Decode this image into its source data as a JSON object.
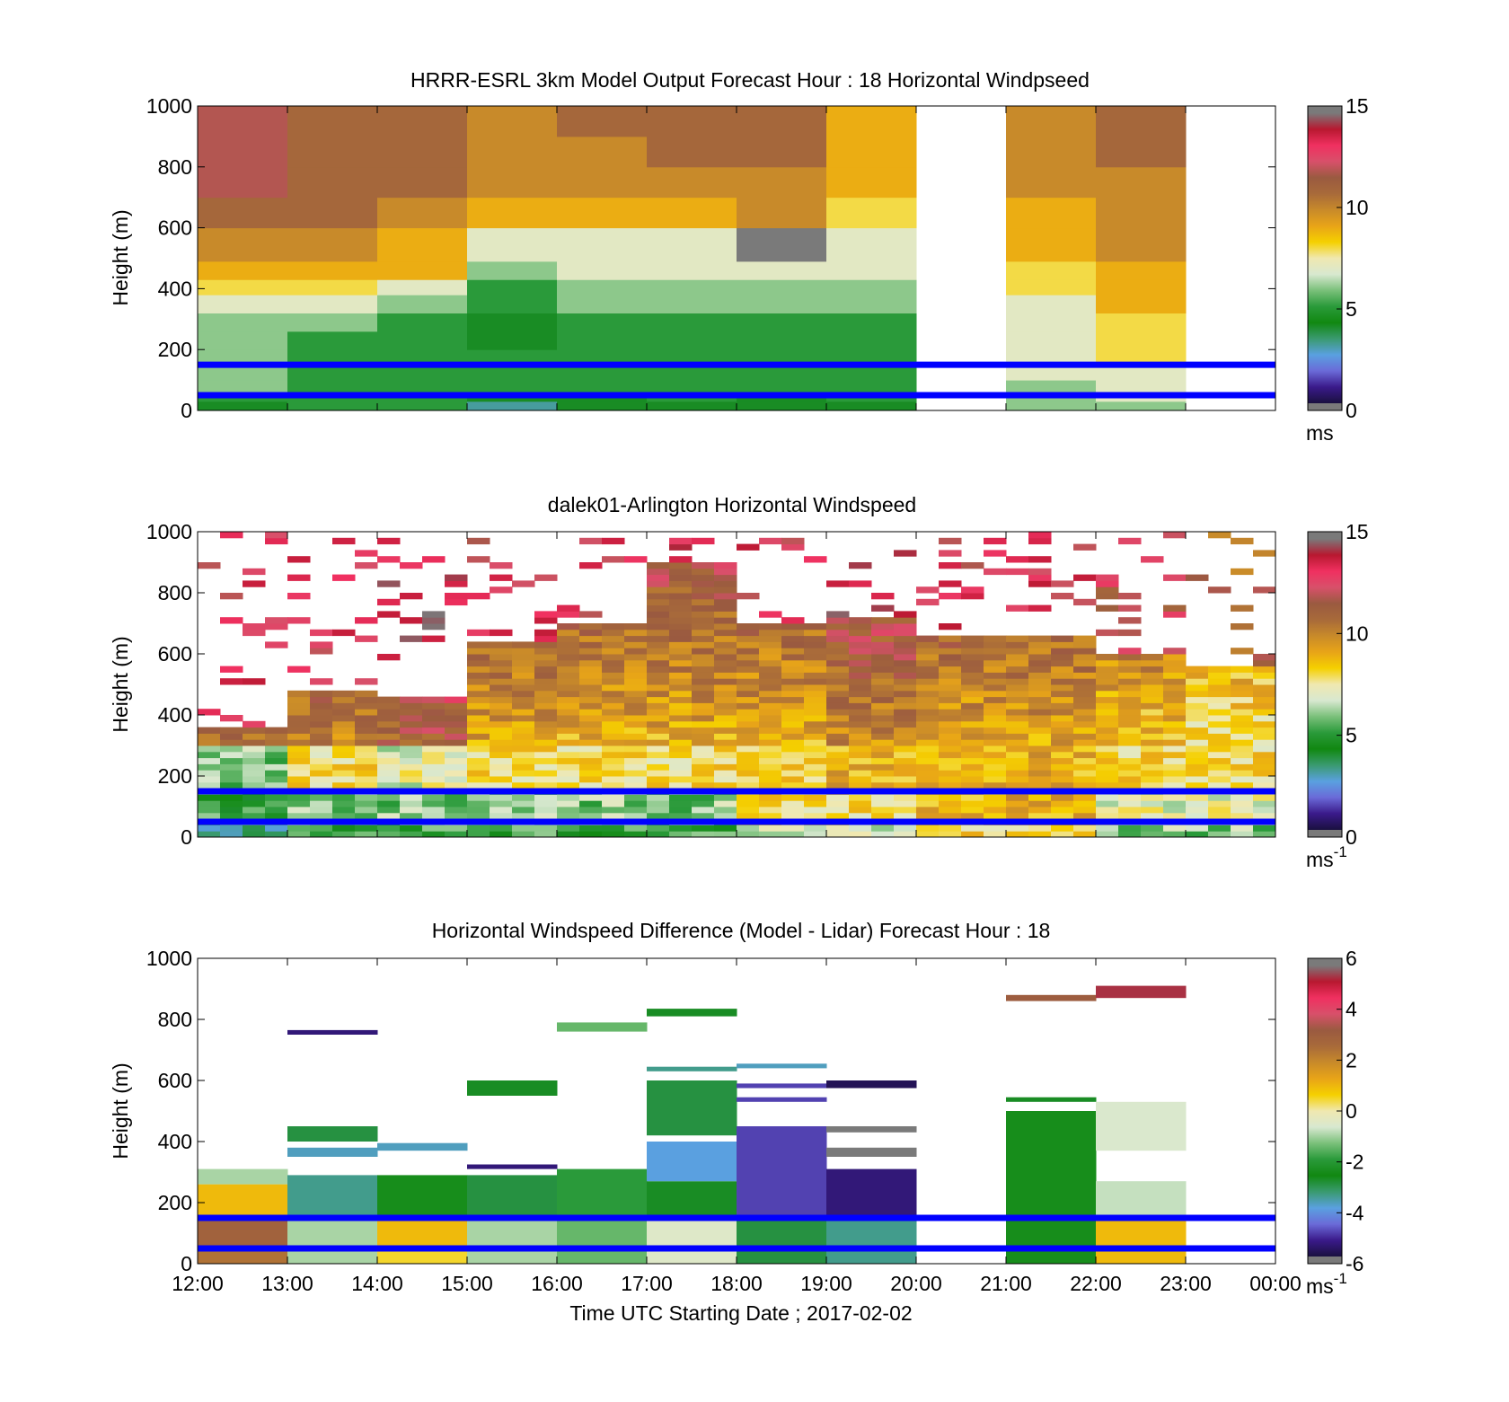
{
  "colors": {
    "overlay_line": "#0000ff",
    "missing": "#ffffff",
    "wind_scale": [
      "#1a1040",
      "#3a1a8a",
      "#6a6ad8",
      "#5aa0e0",
      "#3a9a70",
      "#118811",
      "#2a9a3a",
      "#7ac07a",
      "#d8e8d0",
      "#f0e8b0",
      "#f5d000",
      "#e8a418",
      "#c88a2a",
      "#a86a3a",
      "#9a5a40",
      "#d8506a",
      "#f03060",
      "#b81830",
      "#7a7a7a"
    ],
    "diff_scale": [
      "#1a1040",
      "#3a1a8a",
      "#6a6ad8",
      "#5aa0e0",
      "#3a9a70",
      "#118811",
      "#2a9a3a",
      "#7ac07a",
      "#d8e8d0",
      "#f0e8b0",
      "#f5d000",
      "#e8a418",
      "#c88a2a",
      "#a86a3a",
      "#9a5a40",
      "#d8506a",
      "#f03060",
      "#b81830",
      "#7a7a7a"
    ]
  },
  "x_axis": {
    "label": "Time UTC  Starting Date ; 2017-02-02",
    "tick_labels": [
      "12:00",
      "13:00",
      "14:00",
      "15:00",
      "16:00",
      "17:00",
      "18:00",
      "19:00",
      "20:00",
      "21:00",
      "22:00",
      "23:00",
      "00:00"
    ],
    "range": [
      12,
      24
    ]
  },
  "chart_data": [
    {
      "type": "heatmap",
      "id": "model",
      "title": "HRRR-ESRL 3km Model Output   Forecast Hour : 18 Horizontal Windpseed",
      "ylabel": "Height (m)",
      "ylim": [
        0,
        1000
      ],
      "yticks": [
        "0",
        "200",
        "400",
        "600",
        "800",
        "1000"
      ],
      "colorbar": {
        "min": 0,
        "max": 15,
        "ticks": [
          "0",
          "5",
          "10",
          "15"
        ],
        "unit_label": "ms",
        "unit_sup": ""
      },
      "overlay_lines_m": [
        150,
        50
      ],
      "height_edges_m": [
        0,
        30,
        60,
        100,
        150,
        200,
        260,
        320,
        380,
        430,
        490,
        600,
        700,
        800,
        900,
        1000
      ],
      "hours": [
        {
          "hour": 12,
          "speeds": [
            4,
            5,
            6,
            6,
            6,
            6,
            6,
            7,
            8,
            9,
            10,
            11,
            12,
            12,
            12
          ]
        },
        {
          "hour": 13,
          "speeds": [
            5,
            5,
            5,
            5,
            5,
            5,
            6,
            7,
            8,
            9,
            10,
            11,
            11,
            11,
            11
          ]
        },
        {
          "hour": 14,
          "speeds": [
            5,
            5,
            5,
            5,
            5,
            5,
            5,
            6,
            7,
            9,
            9,
            10,
            11,
            11,
            11
          ]
        },
        {
          "hour": 15,
          "speeds": [
            3,
            4,
            5,
            5,
            5,
            4,
            4,
            5,
            5,
            6,
            7,
            9,
            10,
            10,
            10
          ]
        },
        {
          "hour": 16,
          "speeds": [
            4,
            4,
            5,
            5,
            5,
            5,
            5,
            6,
            6,
            7,
            7,
            9,
            10,
            10,
            11
          ]
        },
        {
          "hour": 17,
          "speeds": [
            4,
            5,
            5,
            5,
            5,
            5,
            5,
            6,
            6,
            7,
            7,
            9,
            10,
            11,
            11
          ]
        },
        {
          "hour": 18,
          "speeds": [
            4,
            4,
            5,
            5,
            5,
            5,
            5,
            6,
            6,
            7,
            15,
            10,
            10,
            11,
            11
          ]
        },
        {
          "hour": 19,
          "speeds": [
            4,
            5,
            5,
            5,
            5,
            5,
            5,
            6,
            6,
            7,
            7,
            8,
            9,
            9,
            9
          ]
        },
        {
          "hour": 20,
          "speeds": null
        },
        {
          "hour": 21,
          "speeds": [
            6,
            6,
            6,
            7,
            7,
            7,
            7,
            7,
            8,
            8,
            9,
            9,
            10,
            10,
            10
          ]
        },
        {
          "hour": 22,
          "speeds": [
            6,
            7,
            7,
            7,
            8,
            8,
            8,
            9,
            9,
            9,
            10,
            10,
            10,
            11,
            11
          ]
        },
        {
          "hour": 23,
          "speeds": null
        }
      ]
    },
    {
      "type": "heatmap",
      "id": "lidar",
      "title": "dalek01-Arlington  Horizontal Windspeed",
      "ylabel": "Height (m)",
      "ylim": [
        0,
        1000
      ],
      "yticks": [
        "0",
        "200",
        "400",
        "600",
        "800",
        "1000"
      ],
      "colorbar": {
        "min": 0,
        "max": 15,
        "ticks": [
          "0",
          "5",
          "10",
          "15"
        ],
        "unit_label": "ms",
        "unit_sup": "-1"
      },
      "overlay_lines_m": [
        150,
        50
      ],
      "profile_minutes": 15,
      "nominal_profiles": [
        {
          "hour": 12.0,
          "near_surface": 3,
          "low": 5,
          "mid": 7,
          "upper": 11,
          "top_m": 350
        },
        {
          "hour": 13.0,
          "near_surface": 5,
          "low": 6,
          "mid": 9,
          "upper": 11,
          "top_m": 480
        },
        {
          "hour": 14.0,
          "near_surface": 5,
          "low": 6,
          "mid": 8,
          "upper": 12,
          "top_m": 450
        },
        {
          "hour": 15.0,
          "near_surface": 5,
          "low": 6,
          "mid": 9,
          "upper": 11,
          "top_m": 640
        },
        {
          "hour": 16.0,
          "near_surface": 5,
          "low": 6,
          "mid": 9,
          "upper": 11,
          "top_m": 700
        },
        {
          "hour": 17.0,
          "near_surface": 5,
          "low": 6,
          "mid": 9,
          "upper": 12,
          "top_m": 900
        },
        {
          "hour": 18.0,
          "near_surface": 7,
          "low": 8,
          "mid": 9,
          "upper": 11,
          "top_m": 700
        },
        {
          "hour": 19.0,
          "near_surface": 7,
          "low": 8,
          "mid": 10,
          "upper": 12,
          "top_m": 720
        },
        {
          "hour": 20.0,
          "near_surface": 8,
          "low": 9,
          "mid": 10,
          "upper": 11,
          "top_m": 660
        },
        {
          "hour": 21.0,
          "near_surface": 8,
          "low": 9,
          "mid": 10,
          "upper": 11,
          "top_m": 650
        },
        {
          "hour": 22.0,
          "near_surface": 6,
          "low": 7,
          "mid": 9,
          "upper": 10,
          "top_m": 600
        },
        {
          "hour": 23.0,
          "near_surface": 6,
          "low": 7,
          "mid": 9,
          "upper": 9,
          "top_m": 560
        }
      ]
    },
    {
      "type": "heatmap",
      "id": "difference",
      "title": "Horizontal Windspeed Difference (Model - Lidar) Forecast Hour : 18",
      "ylabel": "Height (m)",
      "ylim": [
        0,
        1000
      ],
      "yticks": [
        "0",
        "200",
        "400",
        "600",
        "800",
        "1000"
      ],
      "colorbar": {
        "min": -6,
        "max": 6,
        "ticks": [
          "-6",
          "-4",
          "-2",
          "0",
          "2",
          "4",
          "6"
        ],
        "unit_label": "ms",
        "unit_sup": "-1"
      },
      "overlay_lines_m": [
        150,
        50
      ],
      "cells": [
        {
          "hour": 12,
          "bottom_m": 0,
          "top_m": 60,
          "value": 2.5
        },
        {
          "hour": 12,
          "bottom_m": 60,
          "top_m": 150,
          "value": 3.0
        },
        {
          "hour": 12,
          "bottom_m": 150,
          "top_m": 260,
          "value": 1.0
        },
        {
          "hour": 12,
          "bottom_m": 260,
          "top_m": 310,
          "value": -1.0
        },
        {
          "hour": 13,
          "bottom_m": 0,
          "top_m": 150,
          "value": -1.0
        },
        {
          "hour": 13,
          "bottom_m": 150,
          "top_m": 290,
          "value": -3.5
        },
        {
          "hour": 13,
          "bottom_m": 350,
          "top_m": 380,
          "value": -3.8
        },
        {
          "hour": 13,
          "bottom_m": 400,
          "top_m": 450,
          "value": -3.0
        },
        {
          "hour": 13,
          "bottom_m": 750,
          "top_m": 765,
          "value": -5.5
        },
        {
          "hour": 14,
          "bottom_m": 0,
          "top_m": 60,
          "value": 0.5
        },
        {
          "hour": 14,
          "bottom_m": 60,
          "top_m": 150,
          "value": 1.0
        },
        {
          "hour": 14,
          "bottom_m": 150,
          "top_m": 290,
          "value": -2.5
        },
        {
          "hour": 14,
          "bottom_m": 370,
          "top_m": 395,
          "value": -3.8
        },
        {
          "hour": 15,
          "bottom_m": 0,
          "top_m": 150,
          "value": -1.0
        },
        {
          "hour": 15,
          "bottom_m": 150,
          "top_m": 290,
          "value": -3.0
        },
        {
          "hour": 15,
          "bottom_m": 310,
          "top_m": 325,
          "value": -5.5
        },
        {
          "hour": 15,
          "bottom_m": 550,
          "top_m": 600,
          "value": -2.8
        },
        {
          "hour": 16,
          "bottom_m": 0,
          "top_m": 150,
          "value": -1.5
        },
        {
          "hour": 16,
          "bottom_m": 150,
          "top_m": 310,
          "value": -2.0
        },
        {
          "hour": 16,
          "bottom_m": 760,
          "top_m": 790,
          "value": -1.5
        },
        {
          "hour": 17,
          "bottom_m": 0,
          "top_m": 150,
          "value": -0.5
        },
        {
          "hour": 17,
          "bottom_m": 150,
          "top_m": 270,
          "value": -2.8
        },
        {
          "hour": 17,
          "bottom_m": 270,
          "top_m": 400,
          "value": -4.0
        },
        {
          "hour": 17,
          "bottom_m": 420,
          "top_m": 600,
          "value": -3.0
        },
        {
          "hour": 17,
          "bottom_m": 630,
          "top_m": 645,
          "value": -3.5
        },
        {
          "hour": 17,
          "bottom_m": 810,
          "top_m": 835,
          "value": -2.8
        },
        {
          "hour": 18,
          "bottom_m": 0,
          "top_m": 150,
          "value": -3.0
        },
        {
          "hour": 18,
          "bottom_m": 150,
          "top_m": 450,
          "value": -5.0
        },
        {
          "hour": 18,
          "bottom_m": 530,
          "top_m": 545,
          "value": -5.0
        },
        {
          "hour": 18,
          "bottom_m": 575,
          "top_m": 590,
          "value": -5.0
        },
        {
          "hour": 18,
          "bottom_m": 640,
          "top_m": 655,
          "value": -3.8
        },
        {
          "hour": 19,
          "bottom_m": 0,
          "top_m": 150,
          "value": -3.5
        },
        {
          "hour": 19,
          "bottom_m": 150,
          "top_m": 310,
          "value": -5.5
        },
        {
          "hour": 19,
          "bottom_m": 350,
          "top_m": 380,
          "value": 6.0
        },
        {
          "hour": 19,
          "bottom_m": 430,
          "top_m": 450,
          "value": 6.0
        },
        {
          "hour": 19,
          "bottom_m": 575,
          "top_m": 600,
          "value": -5.8
        },
        {
          "hour": 21,
          "bottom_m": 0,
          "top_m": 500,
          "value": -2.5
        },
        {
          "hour": 21,
          "bottom_m": 530,
          "top_m": 545,
          "value": -2.8
        },
        {
          "hour": 21,
          "bottom_m": 860,
          "top_m": 880,
          "value": 3.2
        },
        {
          "hour": 22,
          "bottom_m": 0,
          "top_m": 150,
          "value": 1.0
        },
        {
          "hour": 22,
          "bottom_m": 150,
          "top_m": 270,
          "value": -0.8
        },
        {
          "hour": 22,
          "bottom_m": 370,
          "top_m": 530,
          "value": -0.6
        },
        {
          "hour": 22,
          "bottom_m": 870,
          "top_m": 910,
          "value": 5.5
        }
      ]
    }
  ]
}
